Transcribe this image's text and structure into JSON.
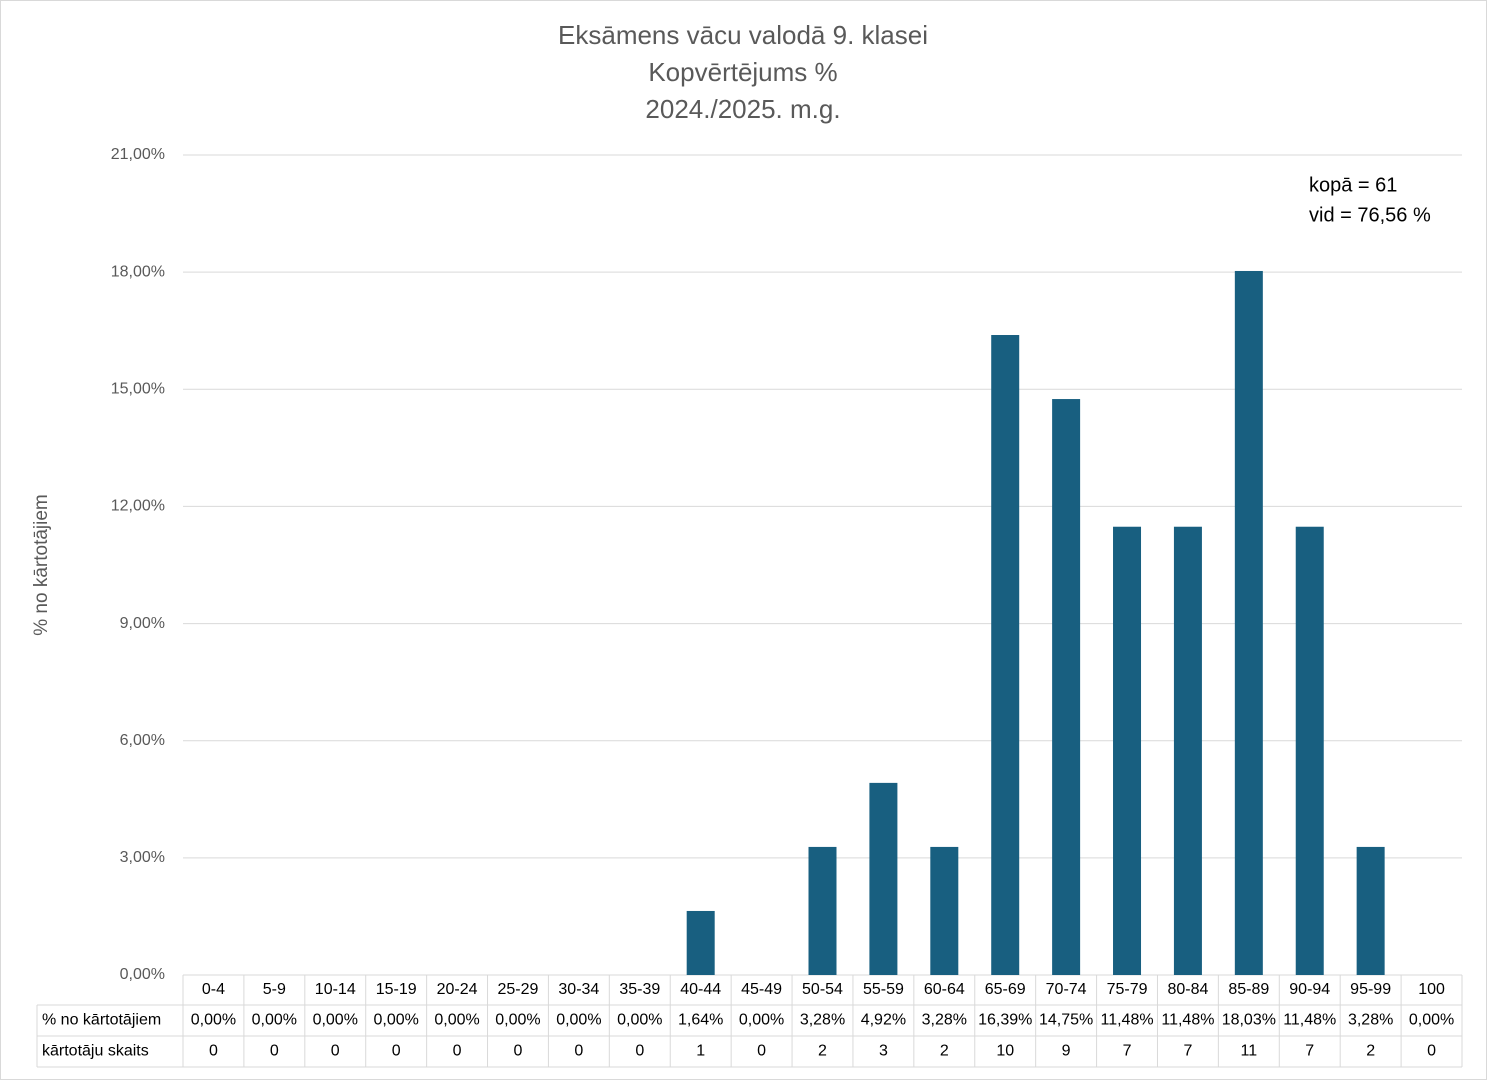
{
  "chart_data": {
    "type": "bar",
    "title": [
      "Eksāmens vācu valodā 9. klasei",
      "Kopvērtējums %",
      "2024./2025. m.g."
    ],
    "y_label": "% no kārtotājiem",
    "categories": [
      "0-4",
      "5-9",
      "10-14",
      "15-19",
      "20-24",
      "25-29",
      "30-34",
      "35-39",
      "40-44",
      "45-49",
      "50-54",
      "55-59",
      "60-64",
      "65-69",
      "70-74",
      "75-79",
      "80-84",
      "85-89",
      "90-94",
      "95-99",
      "100"
    ],
    "series": [
      {
        "name": "% no kārtotājiem",
        "color": "#185f80",
        "values": [
          0,
          0,
          0,
          0,
          0,
          0,
          0,
          0,
          1.64,
          0,
          3.28,
          4.92,
          3.28,
          16.39,
          14.75,
          11.48,
          11.48,
          18.03,
          11.48,
          3.28,
          0
        ],
        "value_labels": [
          "0,00%",
          "0,00%",
          "0,00%",
          "0,00%",
          "0,00%",
          "0,00%",
          "0,00%",
          "0,00%",
          "1,64%",
          "0,00%",
          "3,28%",
          "4,92%",
          "3,28%",
          "16,39%",
          "14,75%",
          "11,48%",
          "11,48%",
          "18,03%",
          "11,48%",
          "3,28%",
          "0,00%"
        ]
      }
    ],
    "table_rows": [
      {
        "name": "kārtotāju skaits",
        "values": [
          0,
          0,
          0,
          0,
          0,
          0,
          0,
          0,
          1,
          0,
          2,
          3,
          2,
          10,
          9,
          7,
          7,
          11,
          7,
          2,
          0
        ]
      }
    ],
    "annotations": [
      "kopā = 61",
      "vid = 76,56 %"
    ],
    "ylim": [
      0,
      21
    ],
    "yticks": [
      {
        "value": 0,
        "label": "0,00%"
      },
      {
        "value": 3,
        "label": "3,00%"
      },
      {
        "value": 6,
        "label": "6,00%"
      },
      {
        "value": 9,
        "label": "9,00%"
      },
      {
        "value": 12,
        "label": "12,00%"
      },
      {
        "value": 15,
        "label": "15,00%"
      },
      {
        "value": 18,
        "label": "18,00%"
      },
      {
        "value": 21,
        "label": "21,00%"
      }
    ],
    "grid": true
  }
}
